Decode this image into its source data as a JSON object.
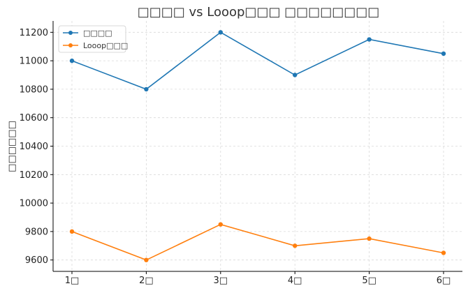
{
  "chart_data": {
    "type": "line",
    "title": "□□□□ vs Looop□□□ □□□□□□□□",
    "xlabel": "",
    "ylabel": "□□□□□□",
    "categories": [
      "1□",
      "2□",
      "3□",
      "4□",
      "5□",
      "6□"
    ],
    "ylim": [
      9520,
      11280
    ],
    "yticks": [
      9600,
      9800,
      10000,
      10200,
      10400,
      10600,
      10800,
      11000,
      11200
    ],
    "grid": true,
    "legend_position": "top-left",
    "series": [
      {
        "name": "□□□□",
        "color": "#1f77b4",
        "values": [
          11000,
          10800,
          11200,
          10900,
          11150,
          11050
        ]
      },
      {
        "name": "Looop□□□",
        "color": "#ff7f0e",
        "values": [
          9800,
          9600,
          9850,
          9700,
          9750,
          9650
        ]
      }
    ]
  }
}
